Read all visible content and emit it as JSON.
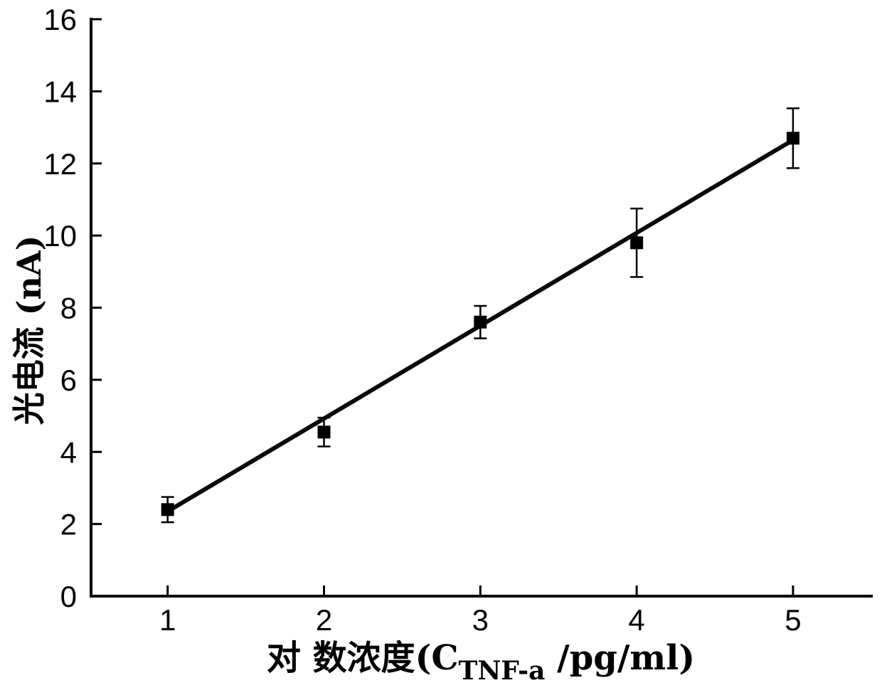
{
  "chart_data": {
    "type": "scatter",
    "title": "",
    "ylabel": "光电流 (nA)",
    "xlabel_prefix": "对 数浓度(C",
    "xlabel_sub": "TNF-a",
    "xlabel_suffix": " /pg/ml)",
    "x": [
      1,
      2,
      3,
      4,
      5
    ],
    "y": [
      2.4,
      4.55,
      7.6,
      9.8,
      12.7
    ],
    "yerr": [
      0.35,
      0.4,
      0.45,
      0.95,
      0.83
    ],
    "series_name": "photocurrent-vs-log-concentration",
    "fit_line": {
      "x1": 1,
      "y1": 2.35,
      "x2": 5,
      "y2": 12.65
    },
    "xticks": [
      1,
      2,
      3,
      4,
      5
    ],
    "yticks": [
      0,
      2,
      4,
      6,
      8,
      10,
      12,
      14,
      16
    ],
    "xlim": [
      0.51,
      5.51
    ],
    "ylim": [
      0,
      16
    ],
    "grid": false,
    "legend": null,
    "marker": "square",
    "colors": {
      "marker": "#000000",
      "line": "#0a0a0a",
      "axis": "#000000",
      "tick_label": "#000000",
      "background": "#ffffff"
    }
  }
}
